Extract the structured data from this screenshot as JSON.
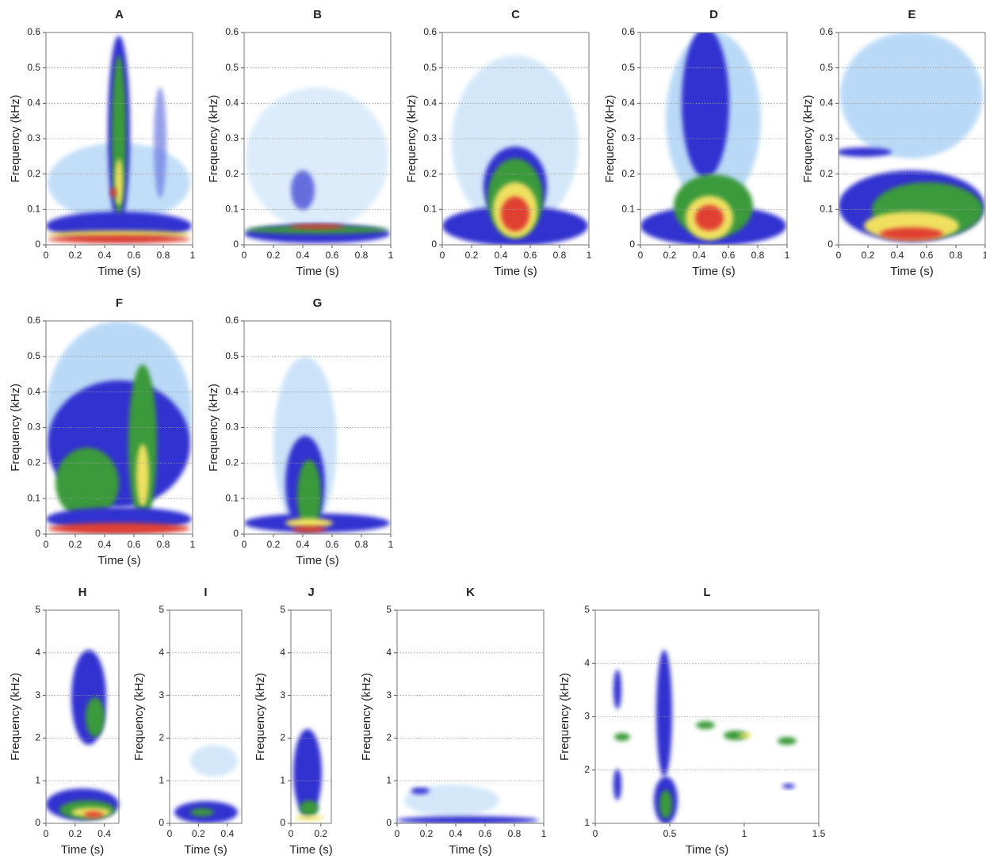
{
  "chart_data": [
    {
      "type": "spectrogram",
      "title": "A",
      "xlabel": "Time (s)",
      "ylabel": "Frequency (kHz)",
      "xlim": [
        0,
        1
      ],
      "ylim": [
        0,
        0.6
      ],
      "xticks": [
        0,
        0.2,
        0.4,
        0.6,
        0.8,
        1
      ],
      "yticks": [
        0,
        0.1,
        0.2,
        0.3,
        0.4,
        0.5,
        0.6
      ],
      "grid": true
    },
    {
      "type": "spectrogram",
      "title": "B",
      "xlabel": "Time (s)",
      "ylabel": "Frequency (kHz)",
      "xlim": [
        0,
        1
      ],
      "ylim": [
        0,
        0.6
      ],
      "xticks": [
        0,
        0.2,
        0.4,
        0.6,
        0.8,
        1
      ],
      "yticks": [
        0,
        0.1,
        0.2,
        0.3,
        0.4,
        0.5,
        0.6
      ],
      "grid": true
    },
    {
      "type": "spectrogram",
      "title": "C",
      "xlabel": "Time (s)",
      "ylabel": "Frequency (kHz)",
      "xlim": [
        0,
        1
      ],
      "ylim": [
        0,
        0.6
      ],
      "xticks": [
        0,
        0.2,
        0.4,
        0.6,
        0.8,
        1
      ],
      "yticks": [
        0,
        0.1,
        0.2,
        0.3,
        0.4,
        0.5,
        0.6
      ],
      "grid": true
    },
    {
      "type": "spectrogram",
      "title": "D",
      "xlabel": "Time (s)",
      "ylabel": "Frequency (kHz)",
      "xlim": [
        0,
        1
      ],
      "ylim": [
        0,
        0.6
      ],
      "xticks": [
        0,
        0.2,
        0.4,
        0.6,
        0.8,
        1
      ],
      "yticks": [
        0,
        0.1,
        0.2,
        0.3,
        0.4,
        0.5,
        0.6
      ],
      "grid": true
    },
    {
      "type": "spectrogram",
      "title": "E",
      "xlabel": "Time (s)",
      "ylabel": "Frequency (kHz)",
      "xlim": [
        0,
        1
      ],
      "ylim": [
        0,
        0.6
      ],
      "xticks": [
        0,
        0.2,
        0.4,
        0.6,
        0.8,
        1
      ],
      "yticks": [
        0,
        0.1,
        0.2,
        0.3,
        0.4,
        0.5,
        0.6
      ],
      "grid": true
    },
    {
      "type": "spectrogram",
      "title": "F",
      "xlabel": "Time (s)",
      "ylabel": "Frequency (kHz)",
      "xlim": [
        0,
        1
      ],
      "ylim": [
        0,
        0.6
      ],
      "xticks": [
        0,
        0.2,
        0.4,
        0.6,
        0.8,
        1
      ],
      "yticks": [
        0,
        0.1,
        0.2,
        0.3,
        0.4,
        0.5,
        0.6
      ],
      "grid": true
    },
    {
      "type": "spectrogram",
      "title": "G",
      "xlabel": "Time (s)",
      "ylabel": "Frequency (kHz)",
      "xlim": [
        0,
        1
      ],
      "ylim": [
        0,
        0.6
      ],
      "xticks": [
        0,
        0.2,
        0.4,
        0.6,
        0.8,
        1
      ],
      "yticks": [
        0,
        0.1,
        0.2,
        0.3,
        0.4,
        0.5,
        0.6
      ],
      "grid": true
    },
    {
      "type": "spectrogram",
      "title": "H",
      "xlabel": "Time (s)",
      "ylabel": "Frequency (kHz)",
      "xlim": [
        0,
        0.5
      ],
      "ylim": [
        0,
        5
      ],
      "xticks": [
        0,
        0.2,
        0.4
      ],
      "yticks": [
        0,
        1,
        2,
        3,
        4,
        5
      ],
      "grid": true
    },
    {
      "type": "spectrogram",
      "title": "I",
      "xlabel": "Time (s)",
      "ylabel": "Frequency (kHz)",
      "xlim": [
        0,
        0.5
      ],
      "ylim": [
        0,
        5
      ],
      "xticks": [
        0,
        0.2,
        0.4
      ],
      "yticks": [
        0,
        1,
        2,
        3,
        4,
        5
      ],
      "grid": true
    },
    {
      "type": "spectrogram",
      "title": "J",
      "xlabel": "Time (s)",
      "ylabel": "Frequency (kHz)",
      "xlim": [
        0,
        0.27
      ],
      "ylim": [
        0,
        5
      ],
      "xticks": [
        0,
        0.2
      ],
      "yticks": [
        0,
        1,
        2,
        3,
        4,
        5
      ],
      "grid": true
    },
    {
      "type": "spectrogram",
      "title": "K",
      "xlabel": "Time (s)",
      "ylabel": "Frequency (kHz)",
      "xlim": [
        0,
        1
      ],
      "ylim": [
        0,
        5
      ],
      "xticks": [
        0,
        0.2,
        0.4,
        0.6,
        0.8,
        1
      ],
      "yticks": [
        0,
        1,
        2,
        3,
        4,
        5
      ],
      "grid": true
    },
    {
      "type": "spectrogram",
      "title": "L",
      "xlabel": "Time (s)",
      "ylabel": "Frequency (kHz)",
      "xlim": [
        0,
        1.5
      ],
      "ylim": [
        1,
        5
      ],
      "xticks": [
        0,
        0.5,
        1,
        1.5
      ],
      "yticks": [
        1,
        2,
        3,
        4,
        5
      ],
      "grid": true
    }
  ]
}
